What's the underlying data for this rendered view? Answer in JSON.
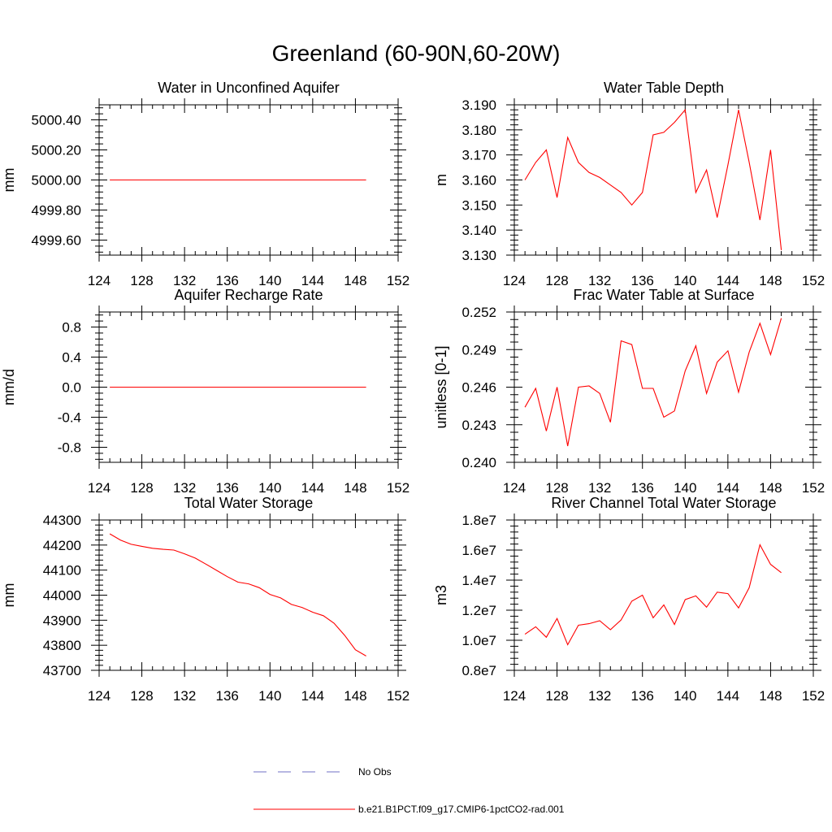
{
  "figure_title": "Greenland (60-90N,60-20W)",
  "colors": {
    "model": "#ff0000",
    "obs": "#6f6fc4",
    "axis": "#000000"
  },
  "legend": {
    "placement": "bottom-center",
    "entries": [
      {
        "label": "No Obs",
        "style": "dashed",
        "color": "#6f6fc4"
      },
      {
        "label": "b.e21.B1PCT.f09_g17.CMIP6-1pctCO2-rad.001",
        "style": "solid",
        "color": "#ff0000"
      }
    ]
  },
  "chart_data": [
    {
      "type": "line",
      "title": "Water in Unconfined Aquifer",
      "ylabel": "mm",
      "xlim": [
        124,
        152
      ],
      "ylim": [
        4999.5,
        5000.5
      ],
      "xticks": [
        "124",
        "128",
        "132",
        "136",
        "140",
        "144",
        "148",
        "152"
      ],
      "yticks": [
        "4999.60",
        "4999.80",
        "5000.00",
        "5000.20",
        "5000.40"
      ],
      "grid": false,
      "series": [
        {
          "x": [
            125,
            126,
            127,
            128,
            129,
            130,
            131,
            132,
            133,
            134,
            135,
            136,
            137,
            138,
            139,
            140,
            141,
            142,
            143,
            144,
            145,
            146,
            147,
            148,
            149
          ],
          "y": [
            5000,
            5000,
            5000,
            5000,
            5000,
            5000,
            5000,
            5000,
            5000,
            5000,
            5000,
            5000,
            5000,
            5000,
            5000,
            5000,
            5000,
            5000,
            5000,
            5000,
            5000,
            5000,
            5000,
            5000,
            5000
          ]
        }
      ]
    },
    {
      "type": "line",
      "title": "Water Table Depth",
      "ylabel": "m",
      "xlim": [
        124,
        152
      ],
      "ylim": [
        3.13,
        3.19
      ],
      "xticks": [
        "124",
        "128",
        "132",
        "136",
        "140",
        "144",
        "148",
        "152"
      ],
      "yticks": [
        "3.130",
        "3.140",
        "3.150",
        "3.160",
        "3.170",
        "3.180",
        "3.190"
      ],
      "grid": false,
      "series": [
        {
          "x": [
            125,
            126,
            127,
            128,
            129,
            130,
            131,
            132,
            133,
            134,
            135,
            136,
            137,
            138,
            139,
            140,
            141,
            142,
            143,
            144,
            145,
            146,
            147,
            148,
            149
          ],
          "y": [
            3.16,
            3.167,
            3.172,
            3.153,
            3.177,
            3.167,
            3.163,
            3.161,
            3.158,
            3.155,
            3.15,
            3.155,
            3.178,
            3.179,
            3.183,
            3.188,
            3.155,
            3.164,
            3.145,
            3.166,
            3.188,
            3.167,
            3.144,
            3.172,
            3.132
          ]
        }
      ]
    },
    {
      "type": "line",
      "title": "Aquifer Recharge Rate",
      "ylabel": "mm/d",
      "xlim": [
        124,
        152
      ],
      "ylim": [
        -1.0,
        1.0
      ],
      "xticks": [
        "124",
        "128",
        "132",
        "136",
        "140",
        "144",
        "148",
        "152"
      ],
      "yticks": [
        "-0.8",
        "-0.4",
        "0.0",
        "0.4",
        "0.8"
      ],
      "grid": false,
      "series": [
        {
          "x": [
            125,
            126,
            127,
            128,
            129,
            130,
            131,
            132,
            133,
            134,
            135,
            136,
            137,
            138,
            139,
            140,
            141,
            142,
            143,
            144,
            145,
            146,
            147,
            148,
            149
          ],
          "y": [
            0,
            0,
            0,
            0,
            0,
            0,
            0,
            0,
            0,
            0,
            0,
            0,
            0,
            0,
            0,
            0,
            0,
            0,
            0,
            0,
            0,
            0,
            0,
            0,
            0
          ]
        }
      ]
    },
    {
      "type": "line",
      "title": "Frac Water Table at Surface",
      "ylabel": "unitless [0-1]",
      "xlim": [
        124,
        152
      ],
      "ylim": [
        0.24,
        0.252
      ],
      "xticks": [
        "124",
        "128",
        "132",
        "136",
        "140",
        "144",
        "148",
        "152"
      ],
      "yticks": [
        "0.240",
        "0.243",
        "0.246",
        "0.249",
        "0.252"
      ],
      "grid": false,
      "series": [
        {
          "x": [
            125,
            126,
            127,
            128,
            129,
            130,
            131,
            132,
            133,
            134,
            135,
            136,
            137,
            138,
            139,
            140,
            141,
            142,
            143,
            144,
            145,
            146,
            147,
            148,
            149
          ],
          "y": [
            0.2444,
            0.2459,
            0.2425,
            0.246,
            0.2413,
            0.246,
            0.2461,
            0.2455,
            0.2432,
            0.2497,
            0.2494,
            0.2459,
            0.2459,
            0.2436,
            0.2441,
            0.2473,
            0.2493,
            0.2455,
            0.248,
            0.2489,
            0.2456,
            0.2488,
            0.2511,
            0.2486,
            0.2515
          ]
        }
      ]
    },
    {
      "type": "line",
      "title": "Total Water Storage",
      "ylabel": "mm",
      "xlim": [
        124,
        152
      ],
      "ylim": [
        43700,
        44300
      ],
      "xticks": [
        "124",
        "128",
        "132",
        "136",
        "140",
        "144",
        "148",
        "152"
      ],
      "yticks": [
        "43700",
        "43800",
        "43900",
        "44000",
        "44100",
        "44200",
        "44300"
      ],
      "grid": false,
      "series": [
        {
          "x": [
            125,
            126,
            127,
            128,
            129,
            130,
            131,
            132,
            133,
            134,
            135,
            136,
            137,
            138,
            139,
            140,
            141,
            142,
            143,
            144,
            145,
            146,
            147,
            148,
            149
          ],
          "y": [
            44245,
            44220,
            44203,
            44195,
            44187,
            44183,
            44180,
            44165,
            44148,
            44124,
            44099,
            44074,
            44052,
            44045,
            44030,
            44003,
            43989,
            43963,
            43951,
            43932,
            43918,
            43888,
            43839,
            43782,
            43757
          ]
        }
      ]
    },
    {
      "type": "line",
      "title": "River Channel Total Water Storage",
      "ylabel": "m3",
      "xlim": [
        124,
        152
      ],
      "ylim": [
        8000000,
        18000000
      ],
      "xticks": [
        "124",
        "128",
        "132",
        "136",
        "140",
        "144",
        "148",
        "152"
      ],
      "yticks": [
        "0.8e7",
        "1.0e7",
        "1.2e7",
        "1.4e7",
        "1.6e7",
        "1.8e7"
      ],
      "grid": false,
      "series": [
        {
          "x": [
            125,
            126,
            127,
            128,
            129,
            130,
            131,
            132,
            133,
            134,
            135,
            136,
            137,
            138,
            139,
            140,
            141,
            142,
            143,
            144,
            145,
            146,
            147,
            148,
            149
          ],
          "y": [
            10400000,
            10900000,
            10200000,
            11450000,
            9700000,
            11000000,
            11100000,
            11300000,
            10700000,
            11350000,
            12600000,
            13000000,
            11500000,
            12350000,
            11050000,
            12700000,
            12950000,
            12200000,
            13200000,
            13100000,
            12150000,
            13500000,
            16350000,
            15050000,
            14500000
          ]
        }
      ]
    }
  ]
}
